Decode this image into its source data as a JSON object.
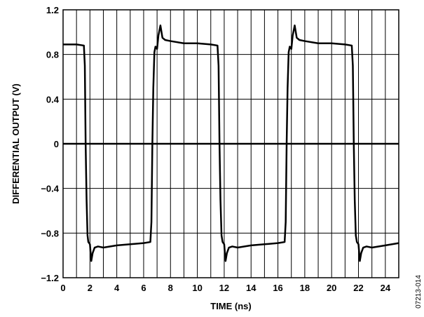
{
  "chart_data": {
    "type": "line",
    "xlabel": "TIME (ns)",
    "ylabel": "DIFFERENTIAL OUTPUT (V)",
    "xlim": [
      0,
      25
    ],
    "ylim": [
      -1.2,
      1.2
    ],
    "x_ticks": [
      0,
      2,
      4,
      6,
      8,
      10,
      12,
      14,
      16,
      18,
      20,
      22,
      24
    ],
    "y_ticks": [
      1.2,
      0.8,
      0.4,
      0,
      -0.4,
      -0.8,
      -1.2
    ],
    "x_tick_labels": [
      "0",
      "2",
      "4",
      "6",
      "8",
      "10",
      "12",
      "14",
      "16",
      "18",
      "20",
      "22",
      "24"
    ],
    "y_tick_labels": [
      "1.2",
      "0.8",
      "0.4",
      "0",
      "−0.4",
      "−0.8",
      "−1.2"
    ],
    "grid": true,
    "figure_id": "07213-014",
    "series": [
      {
        "x": [
          0,
          1.0,
          1.55,
          1.62,
          1.68,
          1.75,
          1.82,
          1.88,
          2.0,
          2.1,
          2.2,
          2.35,
          2.6,
          3.0,
          4.0,
          5.0,
          6.0,
          6.5,
          6.58,
          6.65,
          6.72,
          6.8,
          6.88,
          7.0,
          7.1,
          7.25,
          7.4,
          7.6,
          8.0,
          9.0,
          10.0,
          11.0,
          11.5,
          11.58,
          11.65,
          11.72,
          11.8,
          11.88,
          12.0,
          12.1,
          12.2,
          12.35,
          12.6,
          13.0,
          14.0,
          15.0,
          16.0,
          16.5,
          16.58,
          16.65,
          16.72,
          16.8,
          16.88,
          17.0,
          17.1,
          17.25,
          17.4,
          17.6,
          18.0,
          19.0,
          20.0,
          21.0,
          21.5,
          21.58,
          21.65,
          21.72,
          21.8,
          21.88,
          22.0,
          22.1,
          22.2,
          22.35,
          22.6,
          23.0,
          24.0,
          25.0
        ],
        "y": [
          0.89,
          0.89,
          0.88,
          0.7,
          0.0,
          -0.5,
          -0.82,
          -0.88,
          -0.9,
          -1.05,
          -0.98,
          -0.93,
          -0.92,
          -0.93,
          -0.91,
          -0.9,
          -0.89,
          -0.88,
          -0.7,
          0.0,
          0.5,
          0.82,
          0.87,
          0.85,
          0.97,
          1.06,
          0.95,
          0.93,
          0.92,
          0.9,
          0.9,
          0.89,
          0.88,
          0.7,
          0.0,
          -0.5,
          -0.82,
          -0.88,
          -0.9,
          -1.05,
          -0.98,
          -0.93,
          -0.92,
          -0.93,
          -0.91,
          -0.9,
          -0.89,
          -0.88,
          -0.7,
          0.0,
          0.5,
          0.82,
          0.87,
          0.85,
          0.97,
          1.06,
          0.95,
          0.93,
          0.92,
          0.9,
          0.9,
          0.89,
          0.88,
          0.7,
          0.0,
          -0.5,
          -0.82,
          -0.88,
          -0.9,
          -1.05,
          -0.98,
          -0.93,
          -0.92,
          -0.93,
          -0.91,
          -0.89
        ]
      }
    ]
  }
}
